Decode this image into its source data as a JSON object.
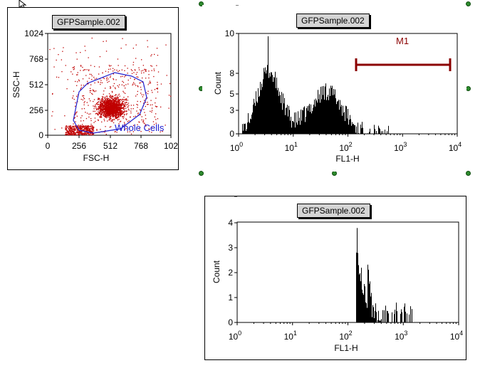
{
  "plots": [
    {
      "title": "GFPSample.002",
      "type": "dot",
      "xlabel": "FSC-H",
      "ylabel": "SSC-H",
      "x_ticks": [
        "0",
        "256",
        "512",
        "768",
        "102"
      ],
      "y_ticks": [
        "0",
        "256",
        "512",
        "768",
        "1024"
      ],
      "gate_label": "Whole Cells",
      "colors": {
        "dots": "#c00000",
        "gate": "#2020d0"
      }
    },
    {
      "title": "GFPSample.002",
      "type": "histogram",
      "xlabel": "FL1-H",
      "ylabel": "Count",
      "x_ticks": [
        "0",
        "1",
        "2",
        "3",
        "4"
      ],
      "x_tick_base": "10",
      "y_ticks": [
        "0",
        "3",
        "5",
        "8",
        "10"
      ],
      "marker_label": "M1",
      "colors": {
        "marker": "#8b0000"
      }
    },
    {
      "title": "GFPSample.002",
      "type": "histogram",
      "xlabel": "FL1-H",
      "ylabel": "Count",
      "x_ticks": [
        "0",
        "1",
        "2",
        "3",
        "4"
      ],
      "x_tick_base": "10",
      "y_ticks": [
        "0",
        "1",
        "2",
        "3",
        "4"
      ]
    }
  ]
}
